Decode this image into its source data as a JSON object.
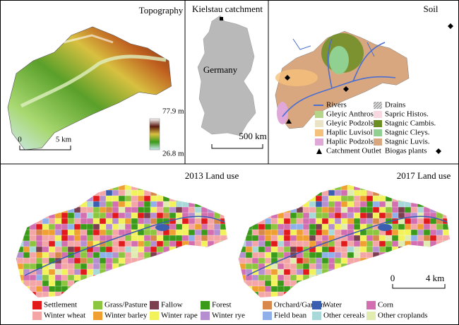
{
  "topography": {
    "title": "Topography",
    "colorbar_max": "77.9 m",
    "colorbar_min": "26.8 m",
    "scale_zero": 0,
    "scale_label": "5 km"
  },
  "germany": {
    "title": "Kielstau catchment",
    "country": "Germany",
    "scale_label": "500 km"
  },
  "soil": {
    "title": "Soil",
    "legend": [
      {
        "label": "Rivers",
        "color": "#4a6fd0",
        "marker": "line"
      },
      {
        "label": "Drains",
        "color": "#9a9a9a",
        "marker": "hatch"
      },
      {
        "label": "Gleyic Anthros.",
        "color": "#b5d68a",
        "marker": "square"
      },
      {
        "label": "Sapric Histos.",
        "color": "#f7d8e0",
        "marker": "square"
      },
      {
        "label": "Gleyic Podzols",
        "color": "#ebe3c6",
        "marker": "square"
      },
      {
        "label": "Stagnic Cambis.",
        "color": "#6b8e23",
        "marker": "square"
      },
      {
        "label": "Haplic Luvisol",
        "color": "#f5c07a",
        "marker": "square"
      },
      {
        "label": "Stagnic Cleys.",
        "color": "#90d090",
        "marker": "square"
      },
      {
        "label": "Haplic Podzols",
        "color": "#e0a8d8",
        "marker": "square"
      },
      {
        "label": "Stagnic Luvis.",
        "color": "#d9a77f",
        "marker": "square"
      },
      {
        "label": "Catchment Outlet",
        "color": "#000000",
        "marker": "triangle"
      },
      {
        "label": "Biogas plants",
        "color": "#000000",
        "marker": "diamond"
      }
    ]
  },
  "land_use": {
    "titles": [
      "2013 Land use",
      "2017 Land use"
    ],
    "scale_zero": 0,
    "scale_label": "4 km",
    "legend": [
      {
        "label": "Settlement",
        "color": "#e31a1c"
      },
      {
        "label": "Grass/Pasture",
        "color": "#8cc63f"
      },
      {
        "label": "Fallow",
        "color": "#7b3f4f"
      },
      {
        "label": "Forest",
        "color": "#3a9a1a"
      },
      {
        "label": "Orchard/Garden",
        "color": "#d8884a"
      },
      {
        "label": "Water",
        "color": "#3b5fb0"
      },
      {
        "label": "Corn",
        "color": "#d36fb0"
      },
      {
        "label": "Winter wheat",
        "color": "#f4a6a6"
      },
      {
        "label": "Winter barley",
        "color": "#f0a030"
      },
      {
        "label": "Winter rape",
        "color": "#f2f25a"
      },
      {
        "label": "Winter rye",
        "color": "#b58fd0"
      },
      {
        "label": "Field bean",
        "color": "#8fb0e8"
      },
      {
        "label": "Other cereals",
        "color": "#a8d8d8"
      },
      {
        "label": "Other croplands",
        "color": "#e0ecb0"
      }
    ]
  }
}
